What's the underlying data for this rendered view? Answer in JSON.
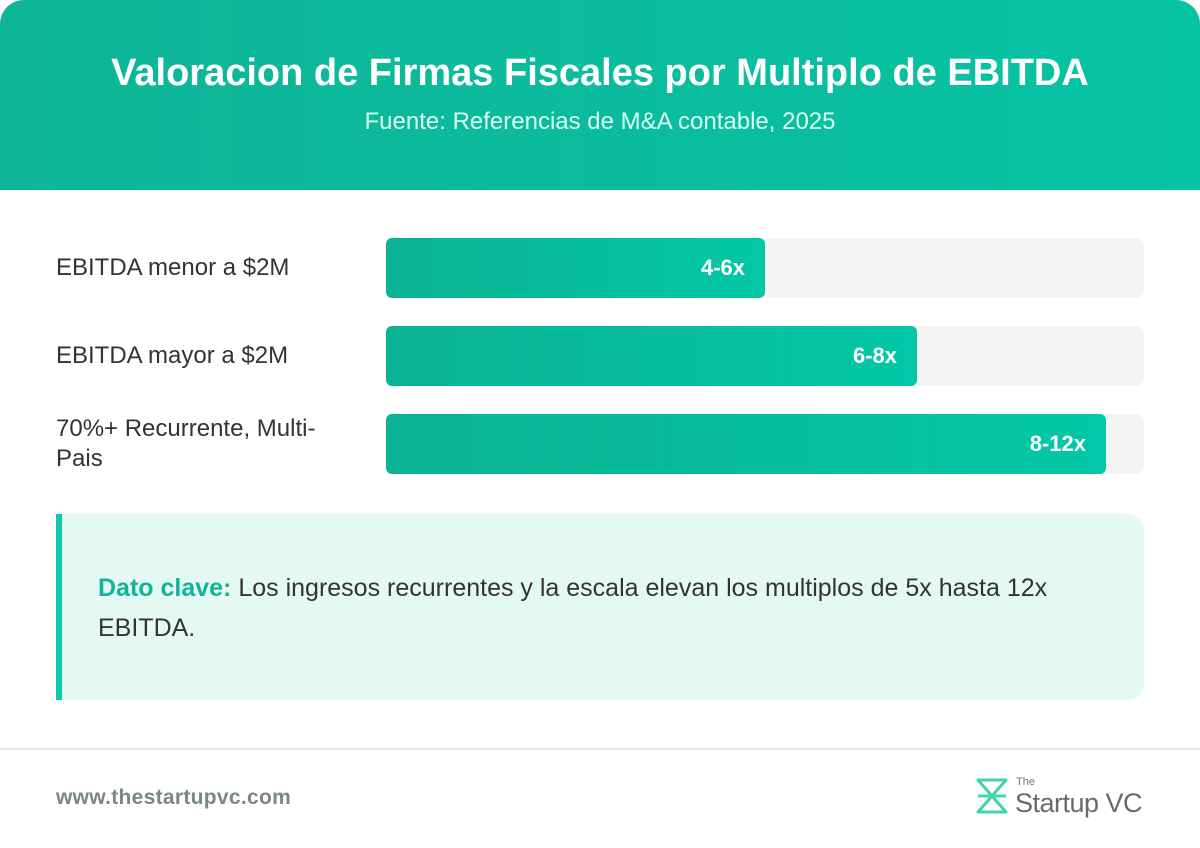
{
  "header": {
    "title": "Valoracion de Firmas Fiscales por Multiplo de EBITDA",
    "subtitle": "Fuente: Referencias de M&A contable, 2025"
  },
  "chart_data": {
    "type": "bar",
    "orientation": "horizontal",
    "title": "Valoracion de Firmas Fiscales por Multiplo de EBITDA",
    "subtitle": "Fuente: Referencias de M&A contable, 2025",
    "categories": [
      "EBITDA menor a $2M",
      "EBITDA mayor a $2M",
      "70%+ Recurrente, Multi-Pais"
    ],
    "ranges": [
      [
        4,
        6
      ],
      [
        6,
        8
      ],
      [
        8,
        12
      ]
    ],
    "values": [
      6,
      8,
      12
    ],
    "value_labels": [
      "4-6x",
      "6-8x",
      "8-12x"
    ],
    "bar_fill_fractions": [
      0.5,
      0.7,
      0.95
    ],
    "colors": {
      "bar": "#0ab393",
      "track": "#f3f4f4"
    }
  },
  "callout": {
    "key": "Dato clave:",
    "text": " Los ingresos recurrentes y la escala elevan los multiplos de 5x hasta 12x EBITDA."
  },
  "footer": {
    "url": "www.thestartupvc.com",
    "logo_the": "The",
    "logo_name": "Startup VC"
  },
  "colors": {
    "header": "#06c3a3",
    "accent": "#0fb597",
    "callout_bg": "#e5f9f3"
  }
}
